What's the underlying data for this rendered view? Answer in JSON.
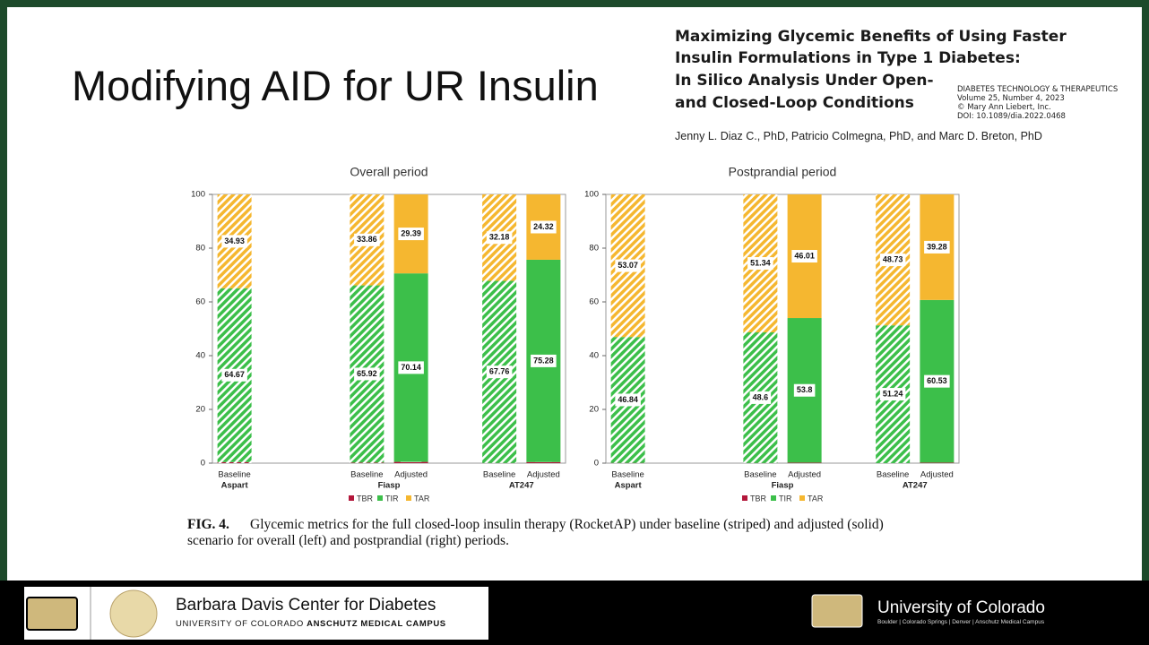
{
  "slide": {
    "title": "Modifying AID for UR Insulin",
    "paper_title": [
      "Maximizing Glycemic Benefits of Using Faster",
      "Insulin Formulations in Type 1 Diabetes:",
      "In Silico Analysis Under Open-",
      "and Closed-Loop Conditions"
    ],
    "journal": [
      "DIABETES TECHNOLOGY & THERAPEUTICS",
      "Volume 25, Number 4, 2023",
      "© Mary Ann Liebert, Inc.",
      "DOI: 10.1089/dia.2022.0468"
    ],
    "authors": "Jenny L. Diaz C., PhD, Patricio Colmegna, PhD, and Marc D. Breton, PhD",
    "fig_label": "FIG. 4.",
    "caption": [
      "Glycemic metrics for the full closed-loop insulin therapy (RocketAP) under baseline (striped) and adjusted (solid)",
      "scenario for overall (left) and postprandial (right) periods."
    ],
    "footer_left": {
      "name": "Barbara Davis Center for Diabetes",
      "sub": "UNIVERSITY OF COLORADO",
      "sub_bold": "ANSCHUTZ MEDICAL CAMPUS"
    },
    "footer_right": {
      "name": "University of Colorado",
      "sub": "Boulder | Colorado Springs | Denver | Anschutz Medical Campus"
    }
  },
  "chart_data": [
    {
      "type": "stacked-bar",
      "title": "Overall period",
      "groups": [
        {
          "name": "Aspart",
          "bars": [
            "Baseline"
          ]
        },
        {
          "name": "Fiasp",
          "bars": [
            "Baseline",
            "Adjusted"
          ]
        },
        {
          "name": "AT247",
          "bars": [
            "Baseline",
            "Adjusted"
          ]
        }
      ],
      "hatched": [
        true,
        true,
        false,
        true,
        false
      ],
      "series": [
        {
          "name": "TBR",
          "color": "#b3173b",
          "values": [
            0.4,
            0.22,
            0.47,
            0.06,
            0.4
          ]
        },
        {
          "name": "TIR",
          "color": "#3cbf4a",
          "values": [
            64.67,
            65.92,
            70.14,
            67.76,
            75.28
          ]
        },
        {
          "name": "TAR",
          "color": "#f5b730",
          "values": [
            34.93,
            33.86,
            29.39,
            32.18,
            24.32
          ]
        }
      ],
      "ylim": [
        0,
        100
      ],
      "yticks": [
        0,
        20,
        40,
        60,
        80,
        100
      ],
      "grid": false
    },
    {
      "type": "stacked-bar",
      "title": "Postprandial period",
      "groups": [
        {
          "name": "Aspart",
          "bars": [
            "Baseline"
          ]
        },
        {
          "name": "Fiasp",
          "bars": [
            "Baseline",
            "Adjusted"
          ]
        },
        {
          "name": "AT247",
          "bars": [
            "Baseline",
            "Adjusted"
          ]
        }
      ],
      "hatched": [
        true,
        true,
        false,
        true,
        false
      ],
      "series": [
        {
          "name": "TBR",
          "color": "#b3173b",
          "values": [
            0.09,
            0.06,
            0.19,
            0.03,
            0.19
          ]
        },
        {
          "name": "TIR",
          "color": "#3cbf4a",
          "values": [
            46.84,
            48.6,
            53.8,
            51.24,
            60.53
          ]
        },
        {
          "name": "TAR",
          "color": "#f5b730",
          "values": [
            53.07,
            51.34,
            46.01,
            48.73,
            39.28
          ]
        }
      ],
      "ylim": [
        0,
        100
      ],
      "yticks": [
        0,
        20,
        40,
        60,
        80,
        100
      ],
      "grid": false
    }
  ]
}
